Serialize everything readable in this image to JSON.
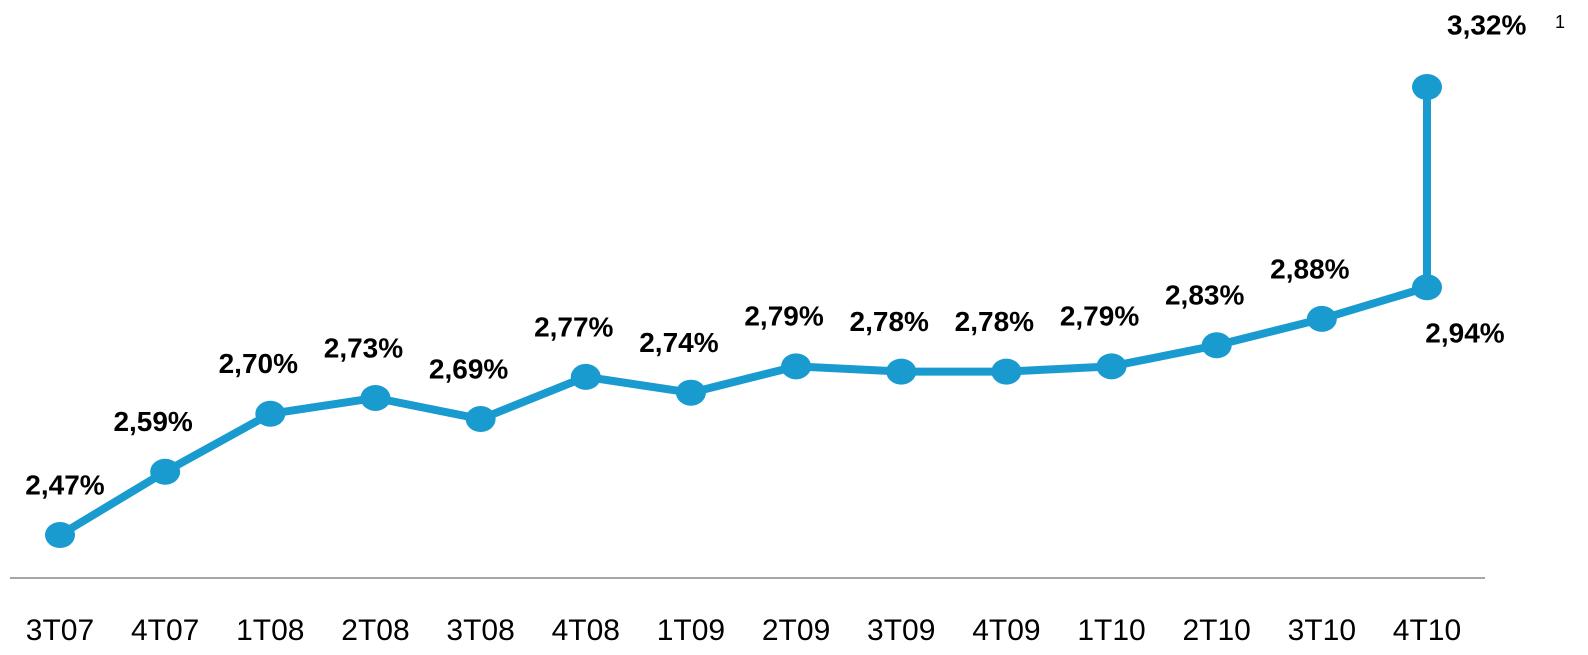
{
  "chart_data": {
    "type": "line",
    "categories": [
      "3T07",
      "4T07",
      "1T08",
      "2T08",
      "3T08",
      "4T08",
      "1T09",
      "2T09",
      "3T09",
      "4T09",
      "1T10",
      "2T10",
      "3T10",
      "4T10"
    ],
    "series": [
      {
        "color": "#1a9bd0",
        "values": [
          2.47,
          2.59,
          2.7,
          2.73,
          2.69,
          2.77,
          2.74,
          2.79,
          2.78,
          2.78,
          2.79,
          2.83,
          2.88,
          2.94
        ],
        "value_labels": [
          "2,47%",
          "2,59%",
          "2,70%",
          "2,73%",
          "2,69%",
          "2,77%",
          "2,74%",
          "2,79%",
          "2,78%",
          "2,78%",
          "2,79%",
          "2,83%",
          "2,88%",
          "2,94%"
        ]
      },
      {
        "color": "#1a9bd0",
        "values": [
          null,
          null,
          null,
          null,
          null,
          null,
          null,
          null,
          null,
          null,
          null,
          null,
          null,
          3.32
        ],
        "value_labels": [
          null,
          null,
          null,
          null,
          null,
          null,
          null,
          null,
          null,
          null,
          null,
          null,
          null,
          "3,32%"
        ],
        "note_marker": "1"
      }
    ],
    "grid": false
  }
}
